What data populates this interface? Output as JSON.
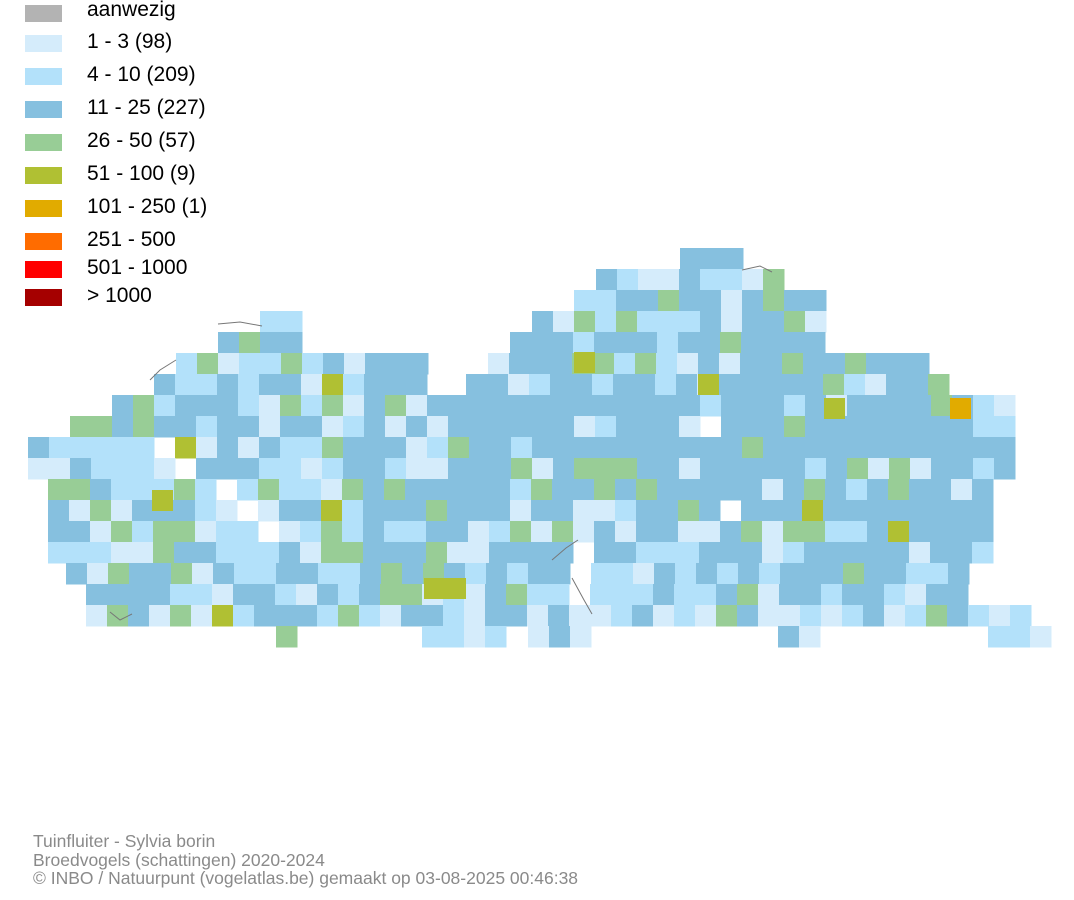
{
  "legend": [
    {
      "label": "aanwezig",
      "color": "#b3b3b3"
    },
    {
      "label": "1 - 3 (98)",
      "color": "#d5ecfb"
    },
    {
      "label": "4 - 10 (209)",
      "color": "#b3e1fa"
    },
    {
      "label": "11 - 25 (227)",
      "color": "#86c0df"
    },
    {
      "label": "26 - 50 (57)",
      "color": "#98cd96"
    },
    {
      "label": "51 - 100 (9)",
      "color": "#b0c033"
    },
    {
      "label": "101 - 250 (1)",
      "color": "#e1ab00"
    },
    {
      "label": "251 - 500",
      "color": "#ff6c00"
    },
    {
      "label": "501 - 1000",
      "color": "#ff0000"
    },
    {
      "label": "> 1000",
      "color": "#a50000"
    }
  ],
  "footer": {
    "species": "Tuinfluiter - Sylvia borin",
    "dataset": "Broedvogels (schattingen) 2020-2024",
    "credit": "© INBO / Natuurpunt (vogelatlas.be) gemaakt op 03-08-2025 00:46:38"
  }
}
